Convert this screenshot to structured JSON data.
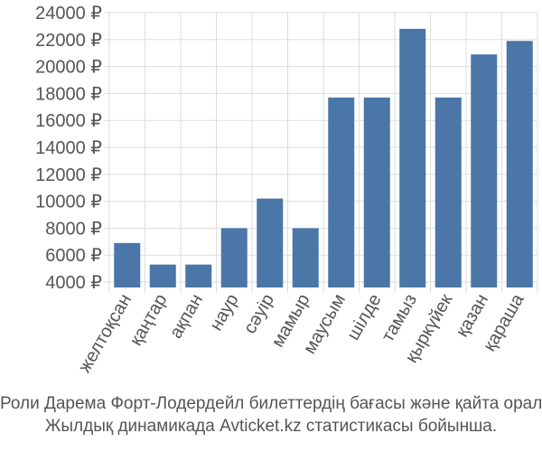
{
  "chart_data": {
    "type": "bar",
    "categories": [
      "желтоқсан",
      "қаңтар",
      "ақпан",
      "наур",
      "сәуір",
      "мамыр",
      "маусым",
      "шілде",
      "тамыз",
      "қыркүйек",
      "қазан",
      "қараша"
    ],
    "values": [
      6900,
      5300,
      5300,
      8000,
      10200,
      8000,
      17700,
      17700,
      22800,
      17700,
      20900,
      21900
    ],
    "y_ticks": [
      4000,
      6000,
      8000,
      10000,
      12000,
      14000,
      16000,
      18000,
      20000,
      22000,
      24000
    ],
    "y_tick_labels": [
      "4000 ₽",
      "6000 ₽",
      "8000 ₽",
      "10000 ₽",
      "12000 ₽",
      "14000 ₽",
      "16000 ₽",
      "18000 ₽",
      "20000 ₽",
      "22000 ₽",
      "24000 ₽"
    ],
    "ylim": [
      3600,
      24000
    ],
    "grid": true,
    "colors": {
      "bar": "#4a76a8",
      "grid": "#dddddd",
      "text": "#555555"
    }
  },
  "caption": {
    "line1": "Роли Дарема Форт-Лодердейл билеттердің бағасы және қайта оралу",
    "line2": "Жылдық динамикада Avticket.kz статистикасы бойынша."
  }
}
